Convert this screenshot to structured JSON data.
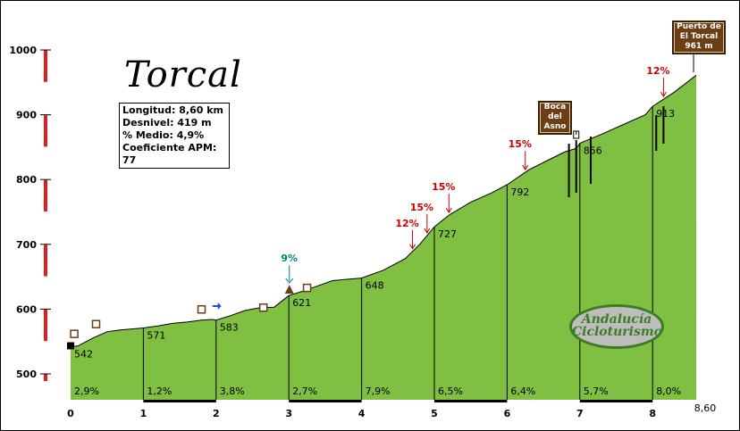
{
  "chart_data": {
    "type": "area",
    "title": "Torcal",
    "stats": {
      "length": "Longitud: 8,60 km",
      "gain": "Desnivel: 419 m",
      "avg": "% Medio: 4,9%",
      "coef": "Coeficiente APM: 77"
    },
    "ylim": [
      500,
      1000
    ],
    "yticks": [
      500,
      600,
      700,
      800,
      900,
      1000
    ],
    "xlim": [
      0,
      8.6
    ],
    "xticks": [
      0,
      1,
      2,
      3,
      4,
      5,
      6,
      7,
      8
    ],
    "xticks_labels": [
      "0",
      "1",
      "2",
      "3",
      "4",
      "5",
      "6",
      "7",
      "8"
    ],
    "x_end_label": "8,60",
    "profile": [
      [
        0,
        542
      ],
      [
        0.1,
        543
      ],
      [
        0.3,
        555
      ],
      [
        0.5,
        565
      ],
      [
        0.7,
        568
      ],
      [
        0.9,
        570
      ],
      [
        1,
        571
      ],
      [
        1.2,
        574
      ],
      [
        1.4,
        578
      ],
      [
        1.6,
        580
      ],
      [
        1.8,
        583
      ],
      [
        1.95,
        584
      ],
      [
        2,
        583
      ],
      [
        2.2,
        590
      ],
      [
        2.4,
        598
      ],
      [
        2.6,
        602
      ],
      [
        2.8,
        603
      ],
      [
        3,
        621
      ],
      [
        3.2,
        628
      ],
      [
        3.4,
        636
      ],
      [
        3.6,
        644
      ],
      [
        3.8,
        646
      ],
      [
        4,
        648
      ],
      [
        4.3,
        660
      ],
      [
        4.6,
        678
      ],
      [
        4.8,
        700
      ],
      [
        5,
        727
      ],
      [
        5.2,
        745
      ],
      [
        5.5,
        765
      ],
      [
        5.8,
        780
      ],
      [
        6,
        792
      ],
      [
        6.3,
        815
      ],
      [
        6.6,
        832
      ],
      [
        6.8,
        843
      ],
      [
        6.95,
        848
      ],
      [
        7,
        856
      ],
      [
        7.3,
        870
      ],
      [
        7.6,
        885
      ],
      [
        7.9,
        900
      ],
      [
        8,
        913
      ],
      [
        8.3,
        935
      ],
      [
        8.6,
        961
      ]
    ],
    "km_points": [
      {
        "km": 0,
        "alt": 542,
        "label": "542"
      },
      {
        "km": 1,
        "alt": 571,
        "label": "571"
      },
      {
        "km": 2,
        "alt": 583,
        "label": "583"
      },
      {
        "km": 3,
        "alt": 621,
        "label": "621"
      },
      {
        "km": 4,
        "alt": 648,
        "label": "648"
      },
      {
        "km": 5,
        "alt": 727,
        "label": "727"
      },
      {
        "km": 6,
        "alt": 792,
        "label": "792"
      },
      {
        "km": 7,
        "alt": 856,
        "label": "856"
      },
      {
        "km": 8,
        "alt": 913,
        "label": "913"
      }
    ],
    "segment_gradients": [
      "2,9%",
      "1,2%",
      "3,8%",
      "2,7%",
      "7,9%",
      "6,5%",
      "6,4%",
      "5,7%",
      "8,0%"
    ],
    "steep_marks": [
      {
        "km": 4.7,
        "label": "12%"
      },
      {
        "km": 4.9,
        "label": "15%"
      },
      {
        "km": 5.2,
        "label": "15%"
      },
      {
        "km": 6.25,
        "label": "15%"
      },
      {
        "km": 8.15,
        "label": "12%"
      }
    ],
    "max_mark": {
      "km": 2.97,
      "label": "9%"
    },
    "signs": [
      {
        "km": 6.95,
        "alt": 865,
        "text": [
          "Boca",
          "del",
          "Asno"
        ]
      },
      {
        "km": 8.6,
        "alt": 961,
        "text": [
          "Puerto de",
          "El Torcal",
          "961 m"
        ]
      }
    ],
    "logo": [
      "Andalucía",
      "Cicloturismo"
    ],
    "colors": {
      "fill": "#7fbf41",
      "line": "#000000",
      "warn": "#cc0000",
      "max": "#007f7f",
      "bar": "#e02020"
    }
  }
}
